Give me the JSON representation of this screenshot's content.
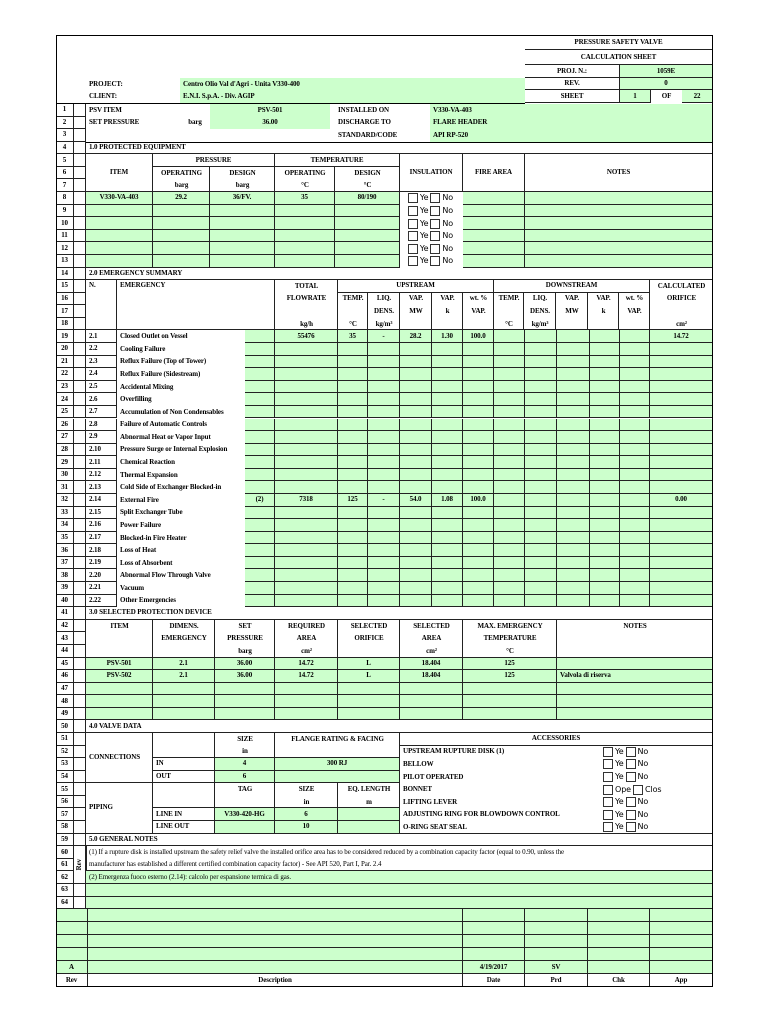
{
  "header": {
    "title1": "PRESSURE SAFETY VALVE",
    "title2": "CALCULATION SHEET",
    "proj_label": "PROJ. N.:",
    "proj_value": "1059E",
    "rev_label": "REV.",
    "rev_value": "0",
    "sheet_label": "SHEET",
    "sheet_num": "1",
    "sheet_of": "OF",
    "sheet_total": "22",
    "project_label": "PROJECT:",
    "project_value": "Centro Olio Val d'Agri - Unita V330-400",
    "client_label": "CLIENT:",
    "client_value": "E.N.I. S.p.A. - Div. AGIP"
  },
  "row_numbers": [
    "1",
    "2",
    "3",
    "4",
    "5",
    "6",
    "7",
    "8",
    "9",
    "10",
    "11",
    "12",
    "13",
    "14",
    "15",
    "16",
    "17",
    "18",
    "19",
    "20",
    "21",
    "22",
    "23",
    "24",
    "25",
    "26",
    "27",
    "28",
    "29",
    "30",
    "31",
    "32",
    "33",
    "34",
    "35",
    "36",
    "37",
    "38",
    "39",
    "40",
    "41",
    "42",
    "43",
    "44",
    "45",
    "46",
    "47",
    "48",
    "49",
    "50",
    "51",
    "52",
    "53",
    "54",
    "55",
    "56",
    "57",
    "58",
    "59",
    "60",
    "61",
    "62",
    "63",
    "64"
  ],
  "general": {
    "psv_item_label": "PSV ITEM",
    "psv_item": "PSV-501",
    "set_pressure_label": "SET PRESSURE",
    "set_pressure_unit": "barg",
    "set_pressure": "36.00",
    "installed_on_label": "INSTALLED ON",
    "installed_on": "V330-VA-403",
    "discharge_label": "DISCHARGE TO",
    "discharge": "FLARE HEADER",
    "standard_label": "STANDARD/CODE",
    "standard": "API RP-520"
  },
  "checkbox": {
    "yes": "Ye",
    "no": "No",
    "open": "Ope",
    "closed": "Clos"
  },
  "equipment": {
    "title": "1.0 PROTECTED EQUIPMENT",
    "headers": {
      "item": "ITEM",
      "pressure": "PRESSURE",
      "temperature": "TEMPERATURE",
      "operating": "OPERATING",
      "design": "DESIGN",
      "barg": "barg",
      "degc": "°C",
      "insulation": "INSULATION",
      "fire_area": "FIRE AREA",
      "notes": "NOTES"
    },
    "rows": [
      {
        "item": "V330-VA-403",
        "p_op": "29.2",
        "p_design": "36/FV.",
        "t_op": "35",
        "t_design": "80/190",
        "fire": "",
        "notes": ""
      },
      {
        "item": "",
        "p_op": "",
        "p_design": "",
        "t_op": "",
        "t_design": "",
        "fire": "",
        "notes": ""
      },
      {
        "item": "",
        "p_op": "",
        "p_design": "",
        "t_op": "",
        "t_design": "",
        "fire": "",
        "notes": ""
      },
      {
        "item": "",
        "p_op": "",
        "p_design": "",
        "t_op": "",
        "t_design": "",
        "fire": "",
        "notes": ""
      },
      {
        "item": "",
        "p_op": "",
        "p_design": "",
        "t_op": "",
        "t_design": "",
        "fire": "",
        "notes": ""
      },
      {
        "item": "",
        "p_op": "",
        "p_design": "",
        "t_op": "",
        "t_design": "",
        "fire": "",
        "notes": ""
      }
    ]
  },
  "emergency": {
    "title": "2.0 EMERGENCY SUMMARY",
    "headers": {
      "n": "N.",
      "emergency": "EMERGENCY",
      "total": "TOTAL",
      "flowrate": "FLOWRATE",
      "kgh": "kg/h",
      "upstream": "UPSTREAM",
      "downstream": "DOWNSTREAM",
      "temp": "TEMP.",
      "degc": "°C",
      "liq": "LIQ.",
      "dens": "DENS.",
      "kgm3": "kg/m³",
      "vap": "VAP.",
      "mw": "MW",
      "k": "k",
      "wt": "wt. %",
      "calculated": "CALCULATED",
      "orifice": "ORIFICE",
      "cm2": "cm²"
    },
    "rows": [
      {
        "n": "2.1",
        "name": "Closed Outlet on Vessel",
        "note": "",
        "flow": "55476",
        "temp": "35",
        "dens": "-",
        "mw": "28.2",
        "k": "1.30",
        "wt": "100.0",
        "orifice": "14.72"
      },
      {
        "n": "2.2",
        "name": "Cooling Failure"
      },
      {
        "n": "2.3",
        "name": "Reflux Failure (Top of Tower)"
      },
      {
        "n": "2.4",
        "name": "Reflux Failure (Sidestream)"
      },
      {
        "n": "2.5",
        "name": "Accidental Mixing"
      },
      {
        "n": "2.6",
        "name": "Overfilling"
      },
      {
        "n": "2.7",
        "name": "Accumulation of Non Condensables"
      },
      {
        "n": "2.8",
        "name": "Failure of Automatic Controls"
      },
      {
        "n": "2.9",
        "name": "Abnormal Heat or Vapor Input"
      },
      {
        "n": "2.10",
        "name": "Pressure Surge or Internal Explosion"
      },
      {
        "n": "2.11",
        "name": "Chemical Reaction"
      },
      {
        "n": "2.12",
        "name": "Thermal Expansion"
      },
      {
        "n": "2.13",
        "name": "Cold Side of Exchanger Blocked-in"
      },
      {
        "n": "2.14",
        "name": "External Fire",
        "note": "(2)",
        "flow": "7318",
        "temp": "125",
        "dens": "-",
        "mw": "54.0",
        "k": "1.08",
        "wt": "100.0",
        "orifice": "0.00"
      },
      {
        "n": "2.15",
        "name": "Split Exchanger Tube"
      },
      {
        "n": "2.16",
        "name": "Power Failure"
      },
      {
        "n": "2.17",
        "name": "Blocked-in Fire Heater"
      },
      {
        "n": "2.18",
        "name": "Loss of Heat"
      },
      {
        "n": "2.19",
        "name": "Loss of Absorbent"
      },
      {
        "n": "2.20",
        "name": "Abnormal Flow Through Valve"
      },
      {
        "n": "2.21",
        "name": "Vacuum"
      },
      {
        "n": "2.22",
        "name": "Other Emergencies"
      }
    ]
  },
  "device": {
    "title": "3.0 SELECTED PROTECTION DEVICE",
    "headers": {
      "item": "ITEM",
      "dimens": "DIMENS.",
      "emergency": "EMERGENCY",
      "set": "SET",
      "pressure": "PRESSURE",
      "barg": "barg",
      "required": "REQUIRED",
      "area": "AREA",
      "cm2": "cm²",
      "selected": "SELECTED",
      "orifice": "ORIFICE",
      "max_emergency": "MAX. EMERGENCY",
      "temperature": "TEMPERATURE",
      "degc": "°C",
      "notes": "NOTES"
    },
    "rows": [
      {
        "item": "PSV-501",
        "dimens": "2.1",
        "set": "36.00",
        "req": "14.72",
        "orifice": "L",
        "area": "18.404",
        "temp": "125",
        "notes": ""
      },
      {
        "item": "PSV-502",
        "dimens": "2.1",
        "set": "36.00",
        "req": "14.72",
        "orifice": "L",
        "area": "18.404",
        "temp": "125",
        "notes": "Valvola di riserva"
      },
      {
        "item": "",
        "dimens": "",
        "set": "",
        "req": "",
        "orifice": "",
        "area": "",
        "temp": "",
        "notes": ""
      },
      {
        "item": "",
        "dimens": "",
        "set": "",
        "req": "",
        "orifice": "",
        "area": "",
        "temp": "",
        "notes": ""
      },
      {
        "item": "",
        "dimens": "",
        "set": "",
        "req": "",
        "orifice": "",
        "area": "",
        "temp": "",
        "notes": ""
      }
    ]
  },
  "valve": {
    "title": "4.0 VALVE DATA",
    "connections_label": "CONNECTIONS",
    "piping_label": "PIPING",
    "size": "SIZE",
    "in_unit": "in",
    "flange": "FLANGE RATING & FACING",
    "in_label": "IN",
    "out_label": "OUT",
    "in_size": "4",
    "in_flange": "300 RJ",
    "out_size": "6",
    "out_flange": "",
    "tag": "TAG",
    "eq_length": "EQ. LENGTH",
    "m_unit": "m",
    "line_in_label": "LINE IN",
    "line_out_label": "LINE OUT",
    "line_in_tag": "V330-420-HG",
    "line_in_size": "6",
    "line_in_eq": "",
    "line_out_tag": "",
    "line_out_size": "10",
    "line_out_eq": "",
    "accessories_label": "ACCESSORIES",
    "accessories": [
      "UPSTREAM RUPTURE DISK (1)",
      "BELLOW",
      "PILOT OPERATED",
      "BONNET",
      "LIFTING LEVER",
      "ADJUSTING RING FOR BLOWDOWN CONTROL",
      "O-RING SEAT SEAL"
    ]
  },
  "notes": {
    "title": "5.0 GENERAL NOTES",
    "rev_side": "Rev",
    "lines": [
      "(1) If a rupture disk is installed upstream the safety relief valve the installed orifice area has to be considered reduced by a combination capacity factor (equal to 0.90, unless the",
      "manufacturer has established a different certified combination capacity factor) - See API 520, Part I, Par. 2.4",
      "(2) Emergenza fuoco esterno (2.14): calcolo per espansione termica di gas.",
      "",
      ""
    ]
  },
  "revisions": {
    "headers": {
      "rev": "Rev",
      "description": "Description",
      "date": "Date",
      "prd": "Prd",
      "chk": "Chk",
      "app": "App"
    },
    "rows": [
      {
        "rev": "",
        "description": "",
        "date": "",
        "prd": "",
        "chk": "",
        "app": ""
      },
      {
        "rev": "",
        "description": "",
        "date": "",
        "prd": "",
        "chk": "",
        "app": ""
      },
      {
        "rev": "",
        "description": "",
        "date": "",
        "prd": "",
        "chk": "",
        "app": ""
      },
      {
        "rev": "",
        "description": "",
        "date": "",
        "prd": "",
        "chk": "",
        "app": ""
      },
      {
        "rev": "A",
        "description": "",
        "date": "4/19/2017",
        "prd": "SV",
        "chk": "",
        "app": ""
      }
    ]
  },
  "colors": {
    "input_fill": "#ccffcc",
    "grid": "#222222"
  }
}
